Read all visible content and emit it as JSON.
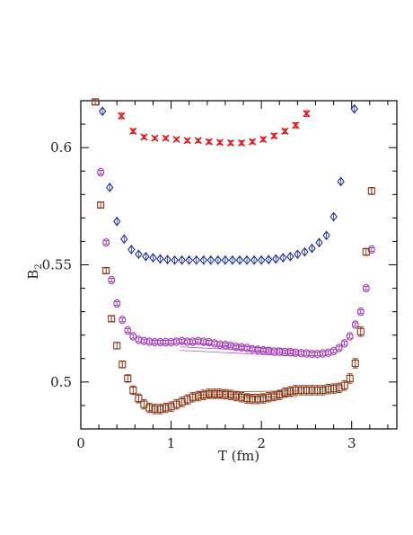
{
  "chart_data": {
    "type": "scatter",
    "xlabel": "T (fm)",
    "ylabel_main": "B",
    "ylabel_sub": "2",
    "xlim": [
      0,
      3.5
    ],
    "ylim": [
      0.48,
      0.62
    ],
    "grid": false,
    "xticks": [
      "0",
      "1",
      "2",
      "3"
    ],
    "yticks": [
      "0.5",
      "0.55",
      "0.6"
    ],
    "series": [
      {
        "marker": "cross",
        "color": "#e41a1c",
        "x": [
          0.45,
          0.58,
          0.7,
          0.82,
          0.94,
          1.06,
          1.18,
          1.3,
          1.42,
          1.54,
          1.66,
          1.78,
          1.9,
          2.02,
          2.14,
          2.26,
          2.38,
          2.5
        ],
        "y": [
          0.6135,
          0.607,
          0.6045,
          0.604,
          0.604,
          0.6035,
          0.603,
          0.603,
          0.6025,
          0.6022,
          0.602,
          0.602,
          0.6025,
          0.6035,
          0.605,
          0.607,
          0.6095,
          0.6145
        ],
        "err": [
          0.0012,
          0.001,
          0.0008,
          0.0007,
          0.0007,
          0.0007,
          0.0008,
          0.0008,
          0.0009,
          0.0009,
          0.0009,
          0.0009,
          0.0009,
          0.0009,
          0.001,
          0.001,
          0.0011,
          0.0012
        ]
      },
      {
        "marker": "diamond",
        "color": "#1f2fa8",
        "x": [
          0.24,
          0.32,
          0.4,
          0.48,
          0.56,
          0.64,
          0.72,
          0.8,
          0.88,
          0.96,
          1.04,
          1.12,
          1.2,
          1.28,
          1.36,
          1.44,
          1.52,
          1.6,
          1.68,
          1.76,
          1.84,
          1.92,
          2.0,
          2.08,
          2.16,
          2.24,
          2.32,
          2.4,
          2.48,
          2.56,
          2.64,
          2.72,
          2.8,
          2.88,
          3.03
        ],
        "y": [
          0.6155,
          0.583,
          0.5685,
          0.561,
          0.5565,
          0.5545,
          0.5535,
          0.553,
          0.5525,
          0.5522,
          0.552,
          0.552,
          0.552,
          0.552,
          0.552,
          0.552,
          0.552,
          0.552,
          0.552,
          0.552,
          0.552,
          0.552,
          0.552,
          0.5522,
          0.5525,
          0.553,
          0.5535,
          0.5545,
          0.5555,
          0.557,
          0.5595,
          0.5625,
          0.5705,
          0.5855,
          0.6165
        ]
      },
      {
        "marker": "circle",
        "color": "#a43cb8",
        "x": [
          0.22,
          0.28,
          0.34,
          0.4,
          0.46,
          0.52,
          0.58,
          0.64,
          0.7,
          0.76,
          0.82,
          0.88,
          0.94,
          1.0,
          1.06,
          1.12,
          1.18,
          1.24,
          1.3,
          1.36,
          1.42,
          1.48,
          1.54,
          1.6,
          1.66,
          1.72,
          1.78,
          1.84,
          1.9,
          1.96,
          2.02,
          2.08,
          2.14,
          2.2,
          2.26,
          2.32,
          2.38,
          2.44,
          2.5,
          2.56,
          2.62,
          2.68,
          2.74,
          2.8,
          2.86,
          2.92,
          2.98,
          3.04,
          3.1,
          3.16,
          3.22
        ],
        "y": [
          0.5895,
          0.5595,
          0.5435,
          0.5335,
          0.5265,
          0.522,
          0.5195,
          0.518,
          0.5175,
          0.5172,
          0.517,
          0.517,
          0.517,
          0.517,
          0.5172,
          0.5175,
          0.5172,
          0.5172,
          0.5175,
          0.5172,
          0.517,
          0.5165,
          0.516,
          0.5158,
          0.5155,
          0.515,
          0.5148,
          0.5145,
          0.514,
          0.5138,
          0.5135,
          0.5133,
          0.513,
          0.513,
          0.5128,
          0.5128,
          0.5125,
          0.5123,
          0.5122,
          0.512,
          0.512,
          0.5122,
          0.5125,
          0.5132,
          0.5145,
          0.5165,
          0.5195,
          0.5245,
          0.53,
          0.54,
          0.5565
        ],
        "err": [
          0.0008,
          0.0008,
          0.0008,
          0.0008,
          0.0008,
          0.0008,
          0.0008,
          0.0008,
          0.0008,
          0.0008,
          0.0008,
          0.0008,
          0.0008,
          0.0008,
          0.0008,
          0.0008,
          0.0008,
          0.0008,
          0.0008,
          0.0008,
          0.0008,
          0.0008,
          0.0008,
          0.0008,
          0.0008,
          0.0008,
          0.0008,
          0.0008,
          0.0008,
          0.0008,
          0.0008,
          0.0008,
          0.0008,
          0.0008,
          0.0008,
          0.0008,
          0.0008,
          0.0008,
          0.0008,
          0.0008,
          0.0008,
          0.0008,
          0.0008,
          0.0008,
          0.0008,
          0.0008,
          0.0008,
          0.0008,
          0.0008,
          0.0008,
          0.0008
        ],
        "fit_band": {
          "x": [
            1.1,
            2.4
          ],
          "y": [
            0.515,
            0.5125
          ],
          "halfwidth": 0.0015
        }
      },
      {
        "marker": "square",
        "color": "#8b3a1a",
        "x": [
          0.16,
          0.22,
          0.28,
          0.34,
          0.4,
          0.46,
          0.52,
          0.58,
          0.64,
          0.7,
          0.76,
          0.82,
          0.88,
          0.94,
          1.0,
          1.06,
          1.12,
          1.18,
          1.24,
          1.3,
          1.36,
          1.42,
          1.48,
          1.54,
          1.6,
          1.66,
          1.72,
          1.78,
          1.84,
          1.9,
          1.96,
          2.02,
          2.08,
          2.14,
          2.2,
          2.26,
          2.32,
          2.38,
          2.44,
          2.5,
          2.56,
          2.62,
          2.68,
          2.74,
          2.8,
          2.86,
          2.92,
          2.98,
          3.04,
          3.1,
          3.16,
          3.22
        ],
        "y": [
          0.6195,
          0.5755,
          0.5475,
          0.527,
          0.5155,
          0.5075,
          0.5015,
          0.4965,
          0.493,
          0.4905,
          0.489,
          0.4885,
          0.4885,
          0.489,
          0.4895,
          0.4905,
          0.4915,
          0.4925,
          0.4935,
          0.494,
          0.4945,
          0.495,
          0.495,
          0.495,
          0.4948,
          0.4945,
          0.494,
          0.4935,
          0.493,
          0.4928,
          0.4928,
          0.493,
          0.4935,
          0.494,
          0.4945,
          0.4955,
          0.496,
          0.4965,
          0.4965,
          0.4965,
          0.4965,
          0.4965,
          0.4965,
          0.497,
          0.4972,
          0.4975,
          0.4985,
          0.5015,
          0.508,
          0.5215,
          0.5555,
          0.5815
        ],
        "err": [
          0.0012,
          0.0012,
          0.0012,
          0.0012,
          0.0014,
          0.0015,
          0.0016,
          0.0018,
          0.0019,
          0.002,
          0.002,
          0.002,
          0.002,
          0.002,
          0.002,
          0.002,
          0.002,
          0.002,
          0.002,
          0.002,
          0.002,
          0.002,
          0.002,
          0.002,
          0.002,
          0.002,
          0.002,
          0.002,
          0.002,
          0.002,
          0.002,
          0.002,
          0.002,
          0.002,
          0.002,
          0.002,
          0.002,
          0.002,
          0.002,
          0.002,
          0.002,
          0.002,
          0.002,
          0.002,
          0.002,
          0.002,
          0.002,
          0.002,
          0.002,
          0.002,
          0.0015,
          0.0015
        ],
        "fit_band": {
          "x": [
            1.3,
            2.4
          ],
          "y": [
            0.4945,
            0.495
          ],
          "halfwidth": 0.0012
        }
      }
    ]
  }
}
